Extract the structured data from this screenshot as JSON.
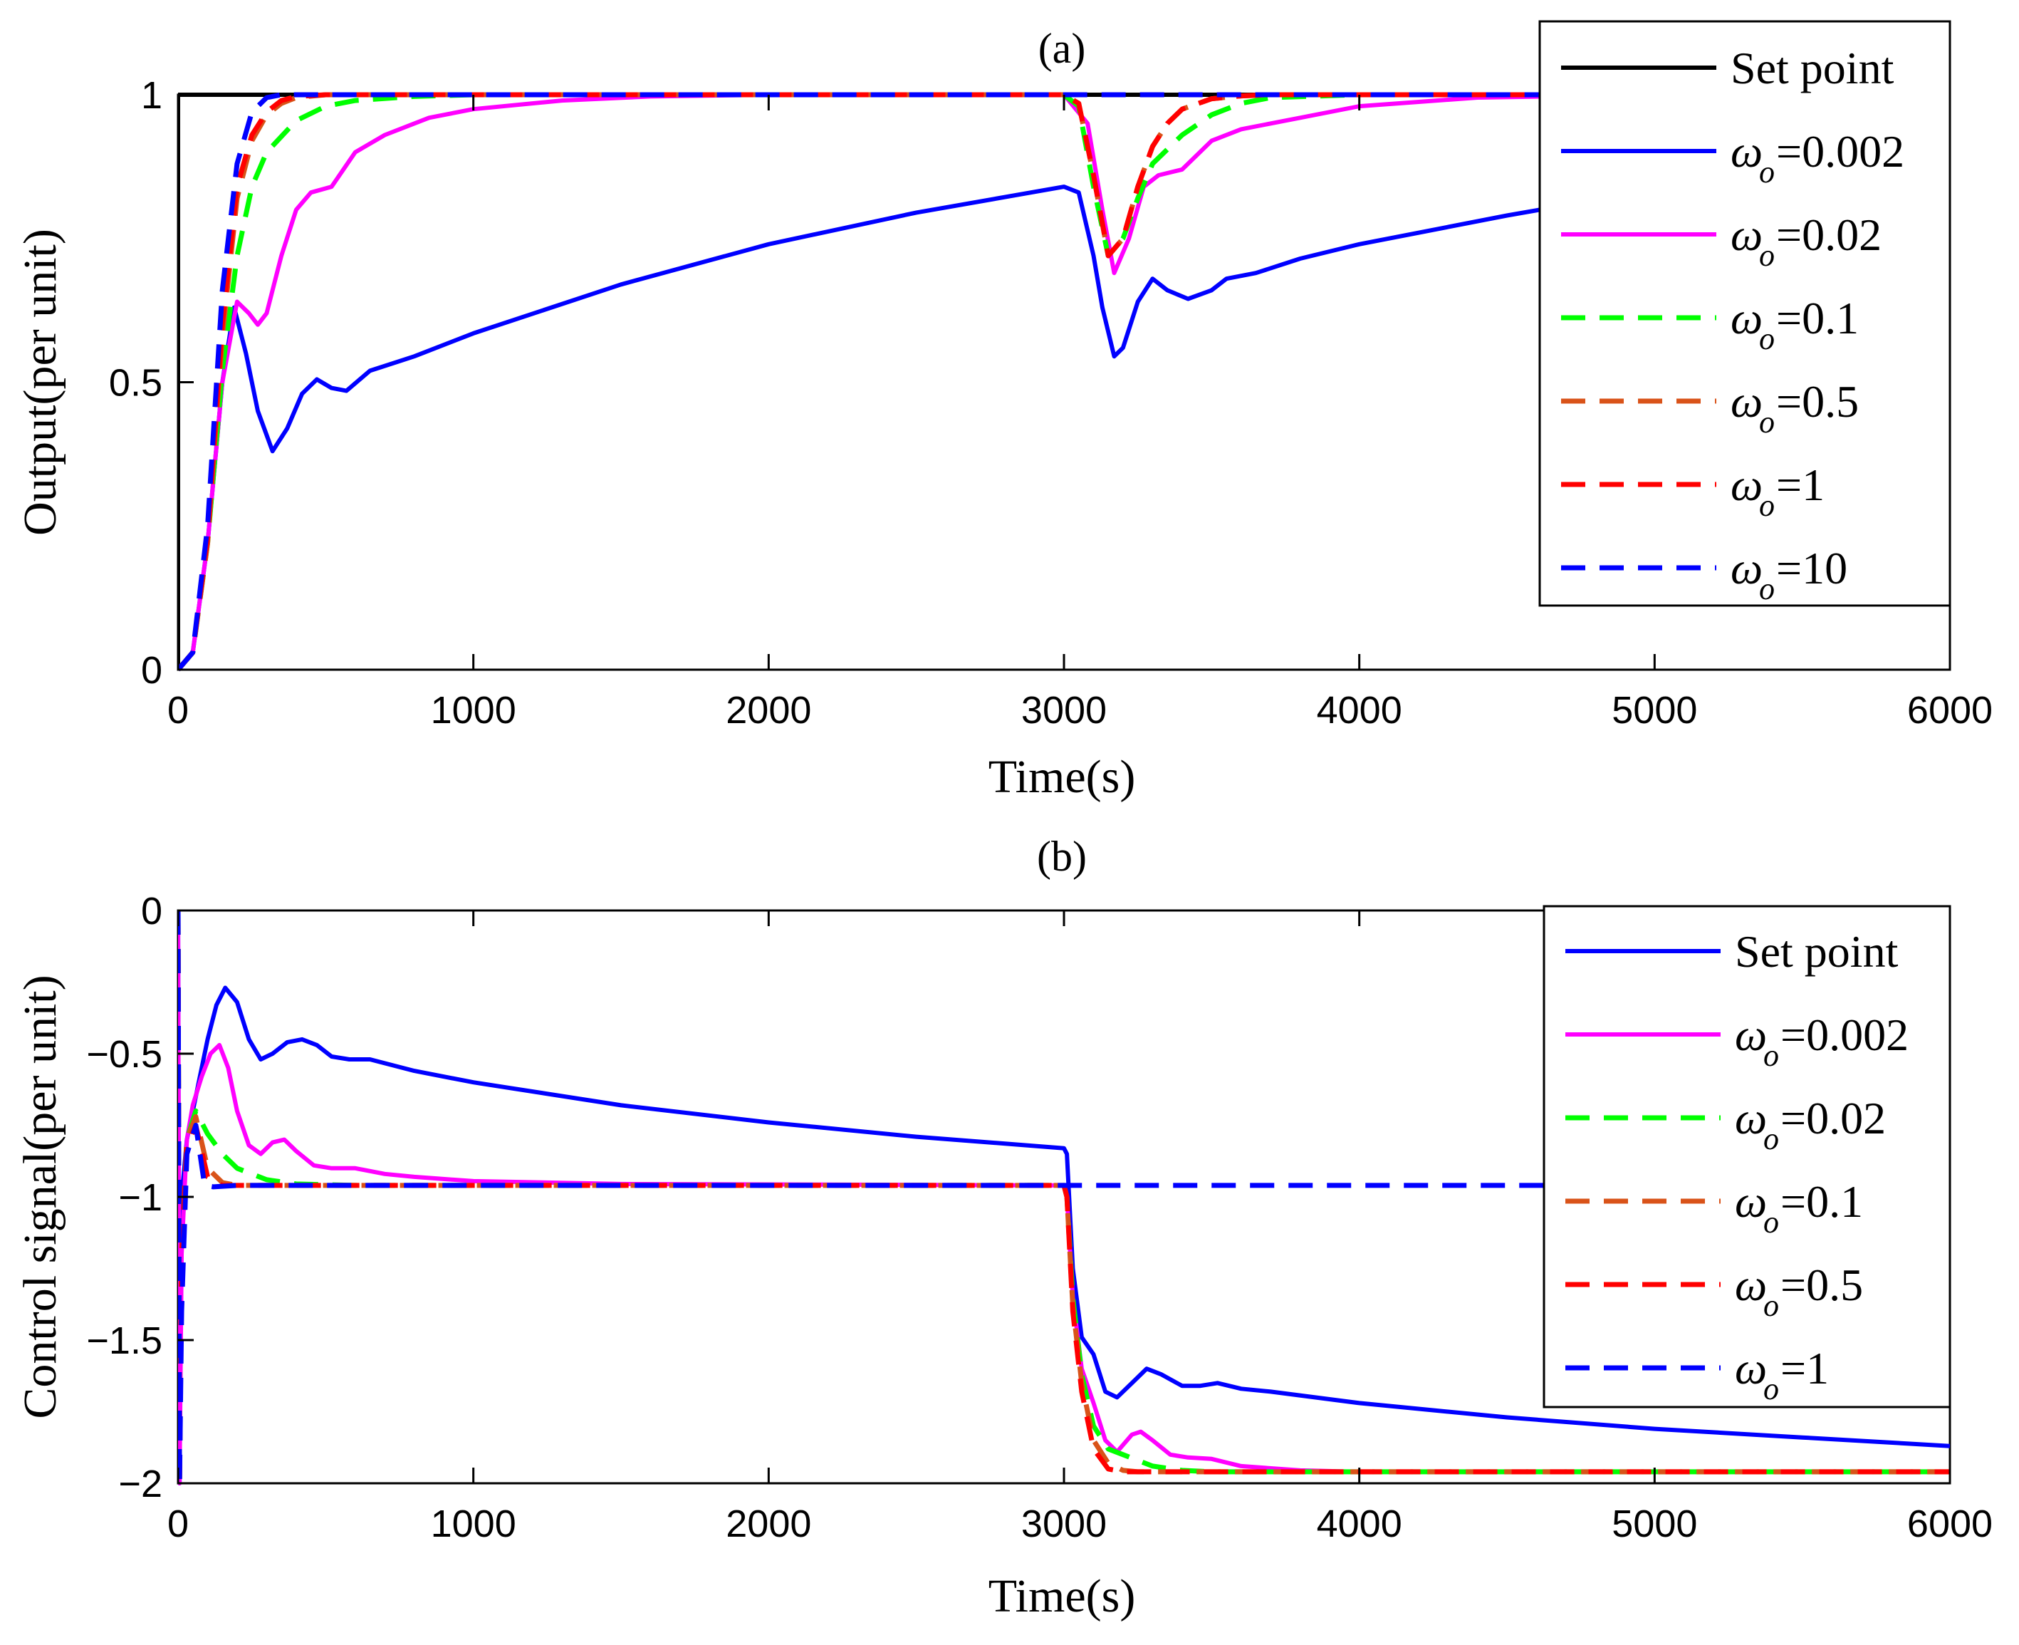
{
  "chart_data": [
    {
      "type": "line",
      "title": "(a)",
      "xlabel": "Time(s)",
      "ylabel": "Output(per unit)",
      "xlim": [
        0,
        6000
      ],
      "ylim": [
        0,
        1
      ],
      "xticks": [
        0,
        1000,
        2000,
        3000,
        4000,
        5000,
        6000
      ],
      "yticks": [
        0,
        0.5,
        1
      ],
      "xtick_labels": [
        "0",
        "1000",
        "2000",
        "3000",
        "4000",
        "5000",
        "6000"
      ],
      "ytick_labels": [
        "0",
        "0.5",
        "1"
      ],
      "grid": false,
      "legend_position": "top-right",
      "series": [
        {
          "name": "Set point",
          "symbol": "",
          "value": "",
          "color": "#000000",
          "dash": "solid",
          "x": [
            0,
            0,
            6000
          ],
          "y": [
            0,
            1,
            1
          ]
        },
        {
          "name": "ω_o=0.002",
          "symbol": "ω",
          "value": "=0.002",
          "color": "#0000ff",
          "dash": "solid",
          "x": [
            0,
            50,
            100,
            150,
            190,
            230,
            270,
            320,
            370,
            420,
            470,
            520,
            570,
            650,
            800,
            1000,
            1500,
            2000,
            2500,
            3000,
            3050,
            3100,
            3130,
            3170,
            3200,
            3250,
            3300,
            3350,
            3420,
            3500,
            3550,
            3650,
            3800,
            4000,
            4500,
            5000,
            5500,
            6000
          ],
          "y": [
            0,
            0.03,
            0.22,
            0.5,
            0.63,
            0.55,
            0.45,
            0.38,
            0.42,
            0.48,
            0.505,
            0.49,
            0.485,
            0.52,
            0.545,
            0.585,
            0.67,
            0.74,
            0.795,
            0.84,
            0.83,
            0.72,
            0.63,
            0.545,
            0.56,
            0.64,
            0.68,
            0.66,
            0.645,
            0.66,
            0.68,
            0.69,
            0.715,
            0.74,
            0.79,
            0.835,
            0.87,
            0.9
          ]
        },
        {
          "name": "ω_o=0.02",
          "symbol": "ω",
          "value": "=0.02",
          "color": "#ff00ff",
          "dash": "solid",
          "x": [
            0,
            50,
            100,
            150,
            200,
            240,
            270,
            300,
            350,
            400,
            450,
            520,
            600,
            700,
            850,
            1000,
            1300,
            1600,
            2000,
            3000,
            3080,
            3130,
            3170,
            3220,
            3270,
            3320,
            3400,
            3500,
            3600,
            3800,
            4000,
            4400,
            5000,
            6000
          ],
          "y": [
            0,
            0.03,
            0.22,
            0.5,
            0.64,
            0.62,
            0.6,
            0.62,
            0.72,
            0.8,
            0.83,
            0.84,
            0.9,
            0.93,
            0.96,
            0.975,
            0.99,
            0.997,
            1,
            1,
            0.95,
            0.8,
            0.69,
            0.75,
            0.84,
            0.86,
            0.87,
            0.92,
            0.94,
            0.96,
            0.98,
            0.995,
            1,
            1
          ]
        },
        {
          "name": "ω_o=0.1",
          "symbol": "ω",
          "value": "=0.1",
          "color": "#00ff00",
          "dash": "dashed",
          "x": [
            0,
            50,
            100,
            150,
            200,
            250,
            300,
            400,
            500,
            600,
            800,
            1000,
            3000,
            3050,
            3100,
            3150,
            3200,
            3250,
            3300,
            3400,
            3500,
            3600,
            3700,
            4000,
            6000
          ],
          "y": [
            0,
            0.03,
            0.22,
            0.52,
            0.72,
            0.84,
            0.9,
            0.955,
            0.98,
            0.99,
            0.997,
            1,
            1,
            0.98,
            0.84,
            0.72,
            0.75,
            0.82,
            0.88,
            0.93,
            0.965,
            0.985,
            0.995,
            1,
            1
          ]
        },
        {
          "name": "ω_o=0.5",
          "symbol": "ω",
          "value": "=0.5",
          "color": "#d95319",
          "dash": "dashed",
          "x": [
            0,
            50,
            100,
            150,
            200,
            250,
            300,
            350,
            400,
            500,
            3000,
            3050,
            3100,
            3150,
            3200,
            3250,
            3300,
            3350,
            3400,
            3500,
            3600,
            3700,
            6000
          ],
          "y": [
            0,
            0.03,
            0.22,
            0.58,
            0.82,
            0.92,
            0.965,
            0.985,
            0.995,
            1,
            1,
            0.985,
            0.86,
            0.72,
            0.75,
            0.84,
            0.91,
            0.95,
            0.975,
            0.993,
            0.998,
            1,
            1
          ]
        },
        {
          "name": "ω_o=1",
          "symbol": "ω",
          "value": "=1",
          "color": "#ff0000",
          "dash": "dashed",
          "x": [
            0,
            50,
            100,
            150,
            200,
            250,
            300,
            350,
            400,
            500,
            3000,
            3050,
            3100,
            3150,
            3200,
            3250,
            3300,
            3350,
            3400,
            3500,
            3600,
            3700,
            6000
          ],
          "y": [
            0,
            0.03,
            0.23,
            0.6,
            0.84,
            0.93,
            0.97,
            0.99,
            0.997,
            1,
            1,
            0.985,
            0.86,
            0.72,
            0.75,
            0.84,
            0.91,
            0.95,
            0.975,
            0.993,
            0.998,
            1,
            1
          ]
        },
        {
          "name": "ω_o=10",
          "symbol": "ω",
          "value": "=10",
          "color": "#0000ff",
          "dash": "dashed",
          "x": [
            0,
            50,
            100,
            150,
            200,
            250,
            300,
            350,
            420,
            500,
            6000
          ],
          "y": [
            0,
            0.03,
            0.25,
            0.66,
            0.88,
            0.97,
            0.995,
            1.0,
            1.0,
            1,
            1
          ]
        }
      ]
    },
    {
      "type": "line",
      "title": "(b)",
      "xlabel": "Time(s)",
      "ylabel": "Control signal(per unit)",
      "xlim": [
        0,
        6000
      ],
      "ylim": [
        -2,
        0
      ],
      "xticks": [
        0,
        1000,
        2000,
        3000,
        4000,
        5000,
        6000
      ],
      "yticks": [
        -2,
        -1.5,
        -1,
        -0.5,
        0
      ],
      "xtick_labels": [
        "0",
        "1000",
        "2000",
        "3000",
        "4000",
        "5000",
        "6000"
      ],
      "ytick_labels": [
        "−2",
        "−1.5",
        "−1",
        "−0.5",
        "0"
      ],
      "grid": false,
      "legend_position": "top-right",
      "series": [
        {
          "name": "Set point",
          "symbol": "",
          "value": "",
          "color": "#0000ff",
          "dash": "solid",
          "x": [
            0,
            5,
            12,
            30,
            60,
            100,
            130,
            160,
            200,
            240,
            280,
            320,
            370,
            420,
            470,
            520,
            580,
            650,
            800,
            1000,
            1500,
            2000,
            2500,
            3000,
            3010,
            3030,
            3060,
            3100,
            3140,
            3180,
            3230,
            3280,
            3330,
            3400,
            3460,
            3520,
            3600,
            3700,
            4000,
            4500,
            5000,
            5500,
            6000
          ],
          "y": [
            0,
            -2,
            -1.0,
            -0.8,
            -0.65,
            -0.45,
            -0.33,
            -0.27,
            -0.32,
            -0.45,
            -0.52,
            -0.5,
            -0.46,
            -0.45,
            -0.47,
            -0.51,
            -0.52,
            -0.52,
            -0.56,
            -0.6,
            -0.68,
            -0.74,
            -0.79,
            -0.83,
            -0.85,
            -1.25,
            -1.49,
            -1.55,
            -1.68,
            -1.7,
            -1.65,
            -1.6,
            -1.62,
            -1.66,
            -1.66,
            -1.65,
            -1.67,
            -1.68,
            -1.72,
            -1.77,
            -1.81,
            -1.84,
            -1.87
          ]
        },
        {
          "name": "ω_o=0.002",
          "symbol": "ω",
          "value": "=0.002",
          "color": "#ff00ff",
          "dash": "solid",
          "x": [
            0,
            5,
            12,
            30,
            50,
            80,
            110,
            140,
            170,
            200,
            240,
            280,
            320,
            360,
            400,
            460,
            520,
            600,
            700,
            800,
            1000,
            1500,
            3000,
            3010,
            3030,
            3060,
            3100,
            3140,
            3180,
            3230,
            3260,
            3300,
            3360,
            3420,
            3500,
            3600,
            3800,
            4000,
            4500,
            6000
          ],
          "y": [
            0,
            -2,
            -1.2,
            -0.8,
            -0.68,
            -0.58,
            -0.5,
            -0.47,
            -0.55,
            -0.7,
            -0.82,
            -0.85,
            -0.81,
            -0.8,
            -0.84,
            -0.89,
            -0.9,
            -0.9,
            -0.92,
            -0.93,
            -0.945,
            -0.955,
            -0.96,
            -1.0,
            -1.35,
            -1.6,
            -1.72,
            -1.85,
            -1.89,
            -1.83,
            -1.82,
            -1.85,
            -1.9,
            -1.91,
            -1.915,
            -1.94,
            -1.955,
            -1.96,
            -1.96,
            -1.96
          ]
        },
        {
          "name": "ω_o=0.02",
          "symbol": "ω",
          "value": "=0.02",
          "color": "#00ff00",
          "dash": "dashed",
          "x": [
            0,
            5,
            12,
            30,
            60,
            100,
            150,
            200,
            300,
            400,
            600,
            3000,
            3010,
            3030,
            3060,
            3100,
            3150,
            3200,
            3250,
            3300,
            3400,
            3500,
            6000
          ],
          "y": [
            0,
            -2,
            -1.2,
            -0.8,
            -0.7,
            -0.78,
            -0.85,
            -0.9,
            -0.94,
            -0.955,
            -0.96,
            -0.96,
            -1.0,
            -1.35,
            -1.62,
            -1.8,
            -1.88,
            -1.9,
            -1.92,
            -1.94,
            -1.955,
            -1.96,
            -1.96
          ]
        },
        {
          "name": "ω_o=0.1",
          "symbol": "ω",
          "value": "=0.1",
          "color": "#d95319",
          "dash": "dashed",
          "x": [
            0,
            5,
            12,
            30,
            60,
            100,
            150,
            200,
            300,
            3000,
            3010,
            3030,
            3060,
            3100,
            3150,
            3200,
            3250,
            3300,
            6000
          ],
          "y": [
            0,
            -2,
            -1.2,
            -0.8,
            -0.72,
            -0.9,
            -0.95,
            -0.96,
            -0.96,
            -0.96,
            -1.0,
            -1.38,
            -1.65,
            -1.85,
            -1.93,
            -1.955,
            -1.96,
            -1.96,
            -1.96
          ]
        },
        {
          "name": "ω_o=0.5",
          "symbol": "ω",
          "value": "=0.5",
          "color": "#ff0000",
          "dash": "dashed",
          "x": [
            0,
            5,
            12,
            30,
            60,
            100,
            150,
            200,
            3000,
            3010,
            3030,
            3060,
            3100,
            3150,
            3200,
            3250,
            6000
          ],
          "y": [
            0,
            -2,
            -1.2,
            -0.82,
            -0.75,
            -0.93,
            -0.96,
            -0.96,
            -0.96,
            -1.0,
            -1.4,
            -1.68,
            -1.88,
            -1.95,
            -1.96,
            -1.96,
            -1.96
          ]
        },
        {
          "name": "ω_o=1",
          "symbol": "ω",
          "value": "=1",
          "color": "#0000ff",
          "dash": "dashed",
          "x": [
            0,
            5,
            12,
            30,
            60,
            90,
            120,
            200,
            6000
          ],
          "y": [
            0,
            -2,
            -1.4,
            -0.85,
            -0.75,
            -0.96,
            -0.965,
            -0.96,
            -0.96
          ]
        }
      ]
    }
  ]
}
